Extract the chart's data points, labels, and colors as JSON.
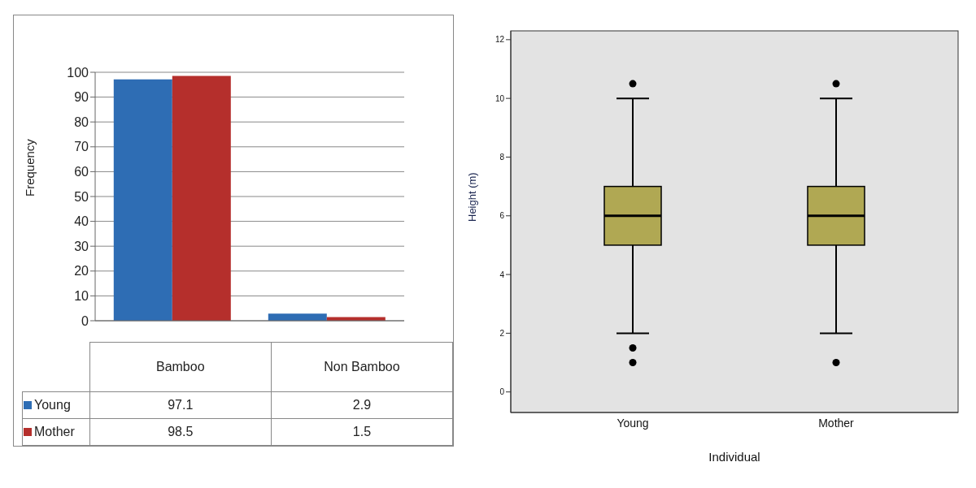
{
  "chart_data": [
    {
      "type": "bar",
      "categories": [
        "Bamboo",
        "Non Bamboo"
      ],
      "ylabel": "Frequency",
      "ylim": [
        0,
        100
      ],
      "yticks": [
        0,
        10,
        20,
        30,
        40,
        50,
        60,
        70,
        80,
        90,
        100
      ],
      "grid": "y",
      "data_labels": true,
      "legend": "bottom",
      "series": [
        {
          "name": "Young",
          "color": "#2e6db4",
          "values": [
            97.1,
            2.9
          ]
        },
        {
          "name": "Mother",
          "color": "#b52f2c",
          "values": [
            98.5,
            1.5
          ]
        }
      ]
    },
    {
      "type": "box",
      "categories": [
        "Young",
        "Mother"
      ],
      "xlabel": "Individual",
      "ylabel": "Height (m)",
      "ylim": [
        -0.7,
        12.3
      ],
      "yticks": [
        0,
        2,
        4,
        6,
        8,
        10,
        12
      ],
      "color": "#b0a853",
      "boxes": [
        {
          "low": 2,
          "q1": 5,
          "median": 6,
          "q3": 7,
          "high": 10,
          "outliers": [
            10.5,
            1.5,
            1
          ]
        },
        {
          "low": 2,
          "q1": 5,
          "median": 6,
          "q3": 7,
          "high": 10,
          "outliers": [
            10.5,
            1
          ]
        }
      ]
    }
  ]
}
